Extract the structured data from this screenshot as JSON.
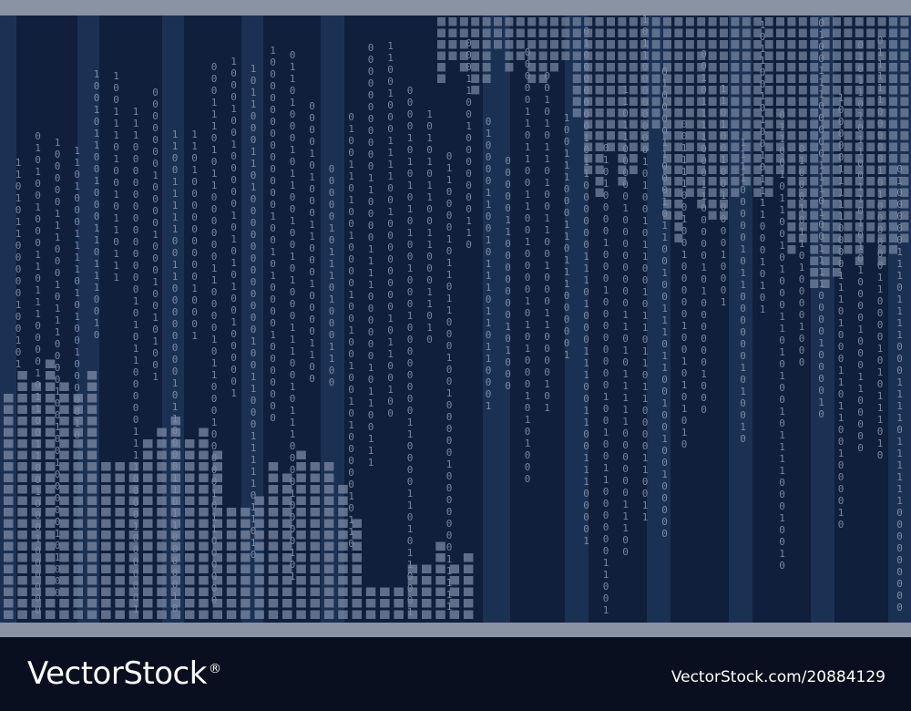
{
  "footer": {
    "logo_text": "VectorStock",
    "logo_mark": "®",
    "image_id": "VectorStock.com/20884129"
  },
  "palette": {
    "background": "#0f1f3c",
    "stripe": "#1d3558",
    "block": "#7f8ea7",
    "digit": "#9aa7bd",
    "frame": "#8a93a3",
    "footer": "#0a0f1f"
  },
  "binary_digits": "0 and 1"
}
